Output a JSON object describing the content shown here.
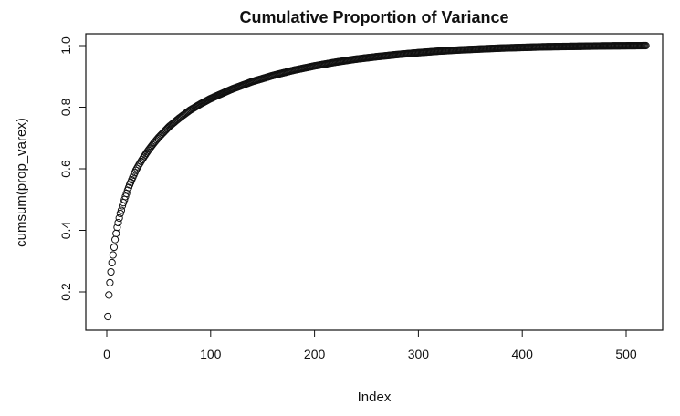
{
  "chart_data": {
    "type": "scatter",
    "title": "Cumulative Proportion of Variance",
    "xlabel": "Index",
    "ylabel": "cumsum(prop_varex)",
    "xlim": [
      0,
      520
    ],
    "ylim": [
      0.1,
      1.0
    ],
    "x_ticks": [
      0,
      100,
      200,
      300,
      400,
      500
    ],
    "y_ticks": [
      0.2,
      0.4,
      0.6,
      0.8,
      1.0
    ],
    "x_tick_labels": [
      "0",
      "100",
      "200",
      "300",
      "400",
      "500"
    ],
    "y_tick_labels": [
      "0.2",
      "0.4",
      "0.6",
      "0.8",
      "1.0"
    ],
    "grid": false,
    "marker": "open-circle",
    "series": [
      {
        "x": [
          1,
          2,
          3,
          4,
          5,
          6,
          7,
          8,
          9,
          10,
          11,
          12,
          13,
          14,
          15,
          16,
          17,
          18,
          19,
          20,
          22,
          25,
          28,
          31,
          35,
          40,
          45,
          50,
          60,
          70,
          80,
          90,
          100,
          120,
          140,
          160,
          180,
          200,
          220,
          240,
          260,
          280,
          300,
          320,
          340,
          360,
          380,
          400,
          420,
          440,
          460,
          480,
          500,
          519
        ],
        "values": [
          0.12,
          0.19,
          0.23,
          0.265,
          0.295,
          0.32,
          0.345,
          0.37,
          0.39,
          0.41,
          0.425,
          0.44,
          0.455,
          0.465,
          0.48,
          0.49,
          0.5,
          0.51,
          0.52,
          0.53,
          0.548,
          0.572,
          0.595,
          0.613,
          0.635,
          0.66,
          0.682,
          0.702,
          0.737,
          0.765,
          0.79,
          0.81,
          0.828,
          0.858,
          0.883,
          0.903,
          0.92,
          0.934,
          0.946,
          0.956,
          0.964,
          0.971,
          0.977,
          0.982,
          0.986,
          0.989,
          0.992,
          0.994,
          0.996,
          0.997,
          0.998,
          0.999,
          0.9995,
          1.0
        ]
      }
    ]
  }
}
